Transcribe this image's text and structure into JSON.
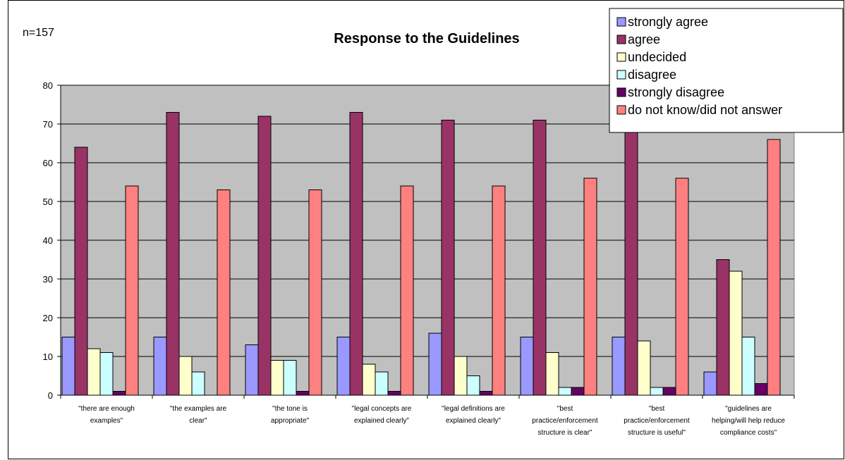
{
  "chart_data": {
    "type": "bar",
    "title": "Response to the Guidelines",
    "note": "n=157",
    "xlabel": "",
    "ylabel": "",
    "ylim": [
      0,
      80
    ],
    "yticks": [
      "0",
      "10",
      "20",
      "30",
      "40",
      "50",
      "60",
      "70",
      "80"
    ],
    "grid": true,
    "legend_position": "top-right",
    "plot_background": "#c0c0c0",
    "categories": [
      [
        "\"there are enough",
        "examples\""
      ],
      [
        "\"the examples are",
        "clear\""
      ],
      [
        "\"the tone is",
        "appropriate\""
      ],
      [
        "\"legal concepts are",
        "explained clearly\""
      ],
      [
        "\"legal definitions are",
        "explained clearly\""
      ],
      [
        "\"best",
        "practice/enforcement",
        "structure is clear\""
      ],
      [
        "\"best",
        "practice/enforcement",
        "structure is useful\""
      ],
      [
        "\"guidelines are",
        "helping/will help reduce",
        "compliance costs\""
      ]
    ],
    "series": [
      {
        "name": "strongly agree",
        "color": "#9999ff",
        "values": [
          15,
          15,
          13,
          15,
          16,
          15,
          15,
          6
        ]
      },
      {
        "name": "agree",
        "color": "#993366",
        "values": [
          64,
          73,
          72,
          73,
          71,
          71,
          71,
          35
        ]
      },
      {
        "name": "undecided",
        "color": "#ffffcc",
        "values": [
          12,
          10,
          9,
          8,
          10,
          11,
          14,
          32
        ]
      },
      {
        "name": "disagree",
        "color": "#ccffff",
        "values": [
          11,
          6,
          9,
          6,
          5,
          2,
          2,
          15
        ]
      },
      {
        "name": "strongly disagree",
        "color": "#660066",
        "values": [
          1,
          0,
          1,
          1,
          1,
          2,
          2,
          3
        ]
      },
      {
        "name": "do not know/did not answer",
        "color": "#ff8080",
        "values": [
          54,
          53,
          53,
          54,
          54,
          56,
          56,
          66
        ]
      }
    ]
  }
}
